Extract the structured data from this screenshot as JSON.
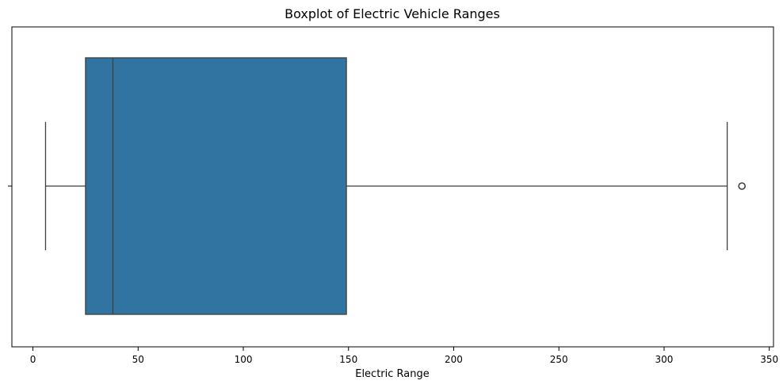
{
  "chart_data": {
    "type": "boxplot",
    "title": "Boxplot of Electric Vehicle Ranges",
    "xlabel": "Electric Range",
    "ylabel": "",
    "orientation": "horizontal",
    "xlim": [
      -10,
      352
    ],
    "xticks": [
      0,
      50,
      100,
      150,
      200,
      250,
      300,
      350
    ],
    "grid": false,
    "box": {
      "whisker_low": 6,
      "q1": 25,
      "median": 38,
      "q3": 149,
      "whisker_high": 330,
      "outliers": [
        337
      ],
      "color": "#3274a1",
      "edge_color": "#3f3f3f"
    }
  }
}
